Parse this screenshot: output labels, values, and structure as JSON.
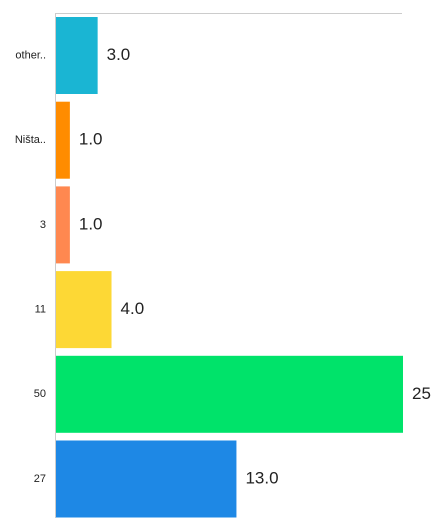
{
  "chart_data": {
    "type": "bar",
    "orientation": "horizontal",
    "categories": [
      "other..",
      "Ništa..",
      "3",
      "11",
      "50",
      "27"
    ],
    "values": [
      3.0,
      1.0,
      1.0,
      4.0,
      25.0,
      13.0
    ],
    "value_labels": [
      "3.0",
      "1.0",
      "1.0",
      "4.0",
      "25",
      "13.0"
    ],
    "colors": [
      "#1ab5d3",
      "#ff8c00",
      "#ff8850",
      "#fdd835",
      "#00e36a",
      "#1e88e5"
    ],
    "title": "",
    "xlabel": "",
    "ylabel": "",
    "xlim": [
      0,
      25
    ],
    "grid": false,
    "legend": "none"
  }
}
